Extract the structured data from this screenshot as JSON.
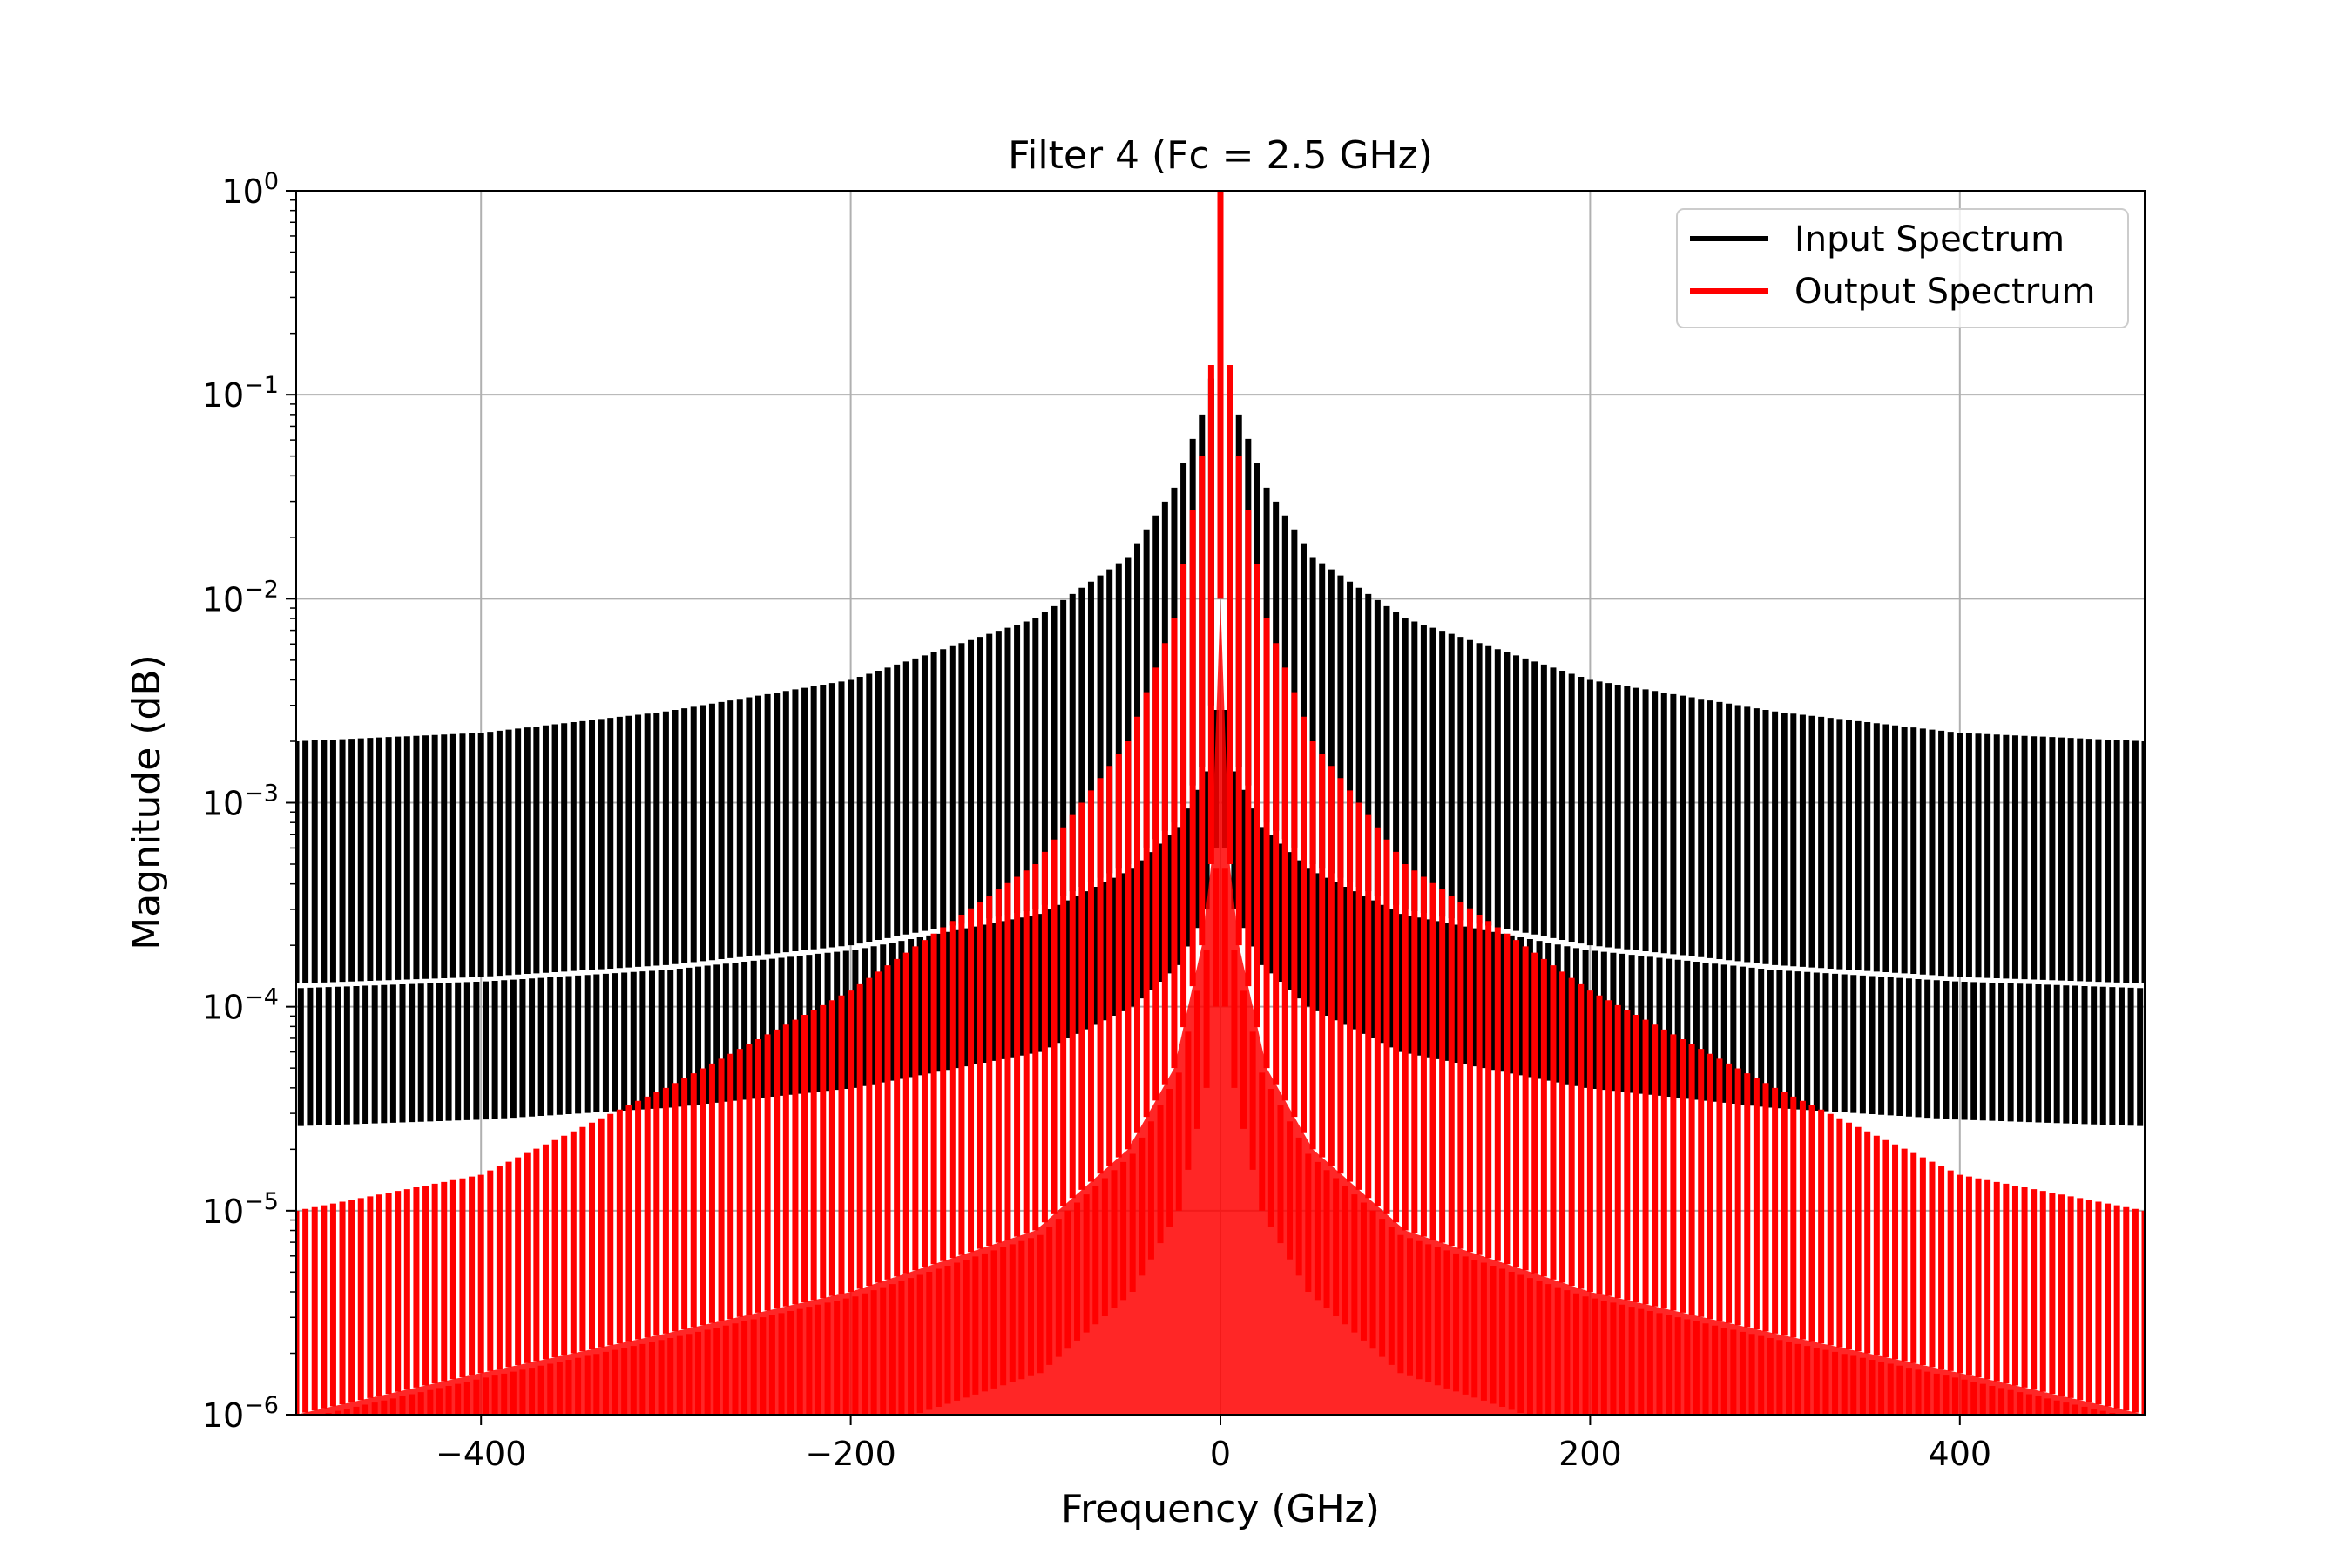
{
  "chart_data": {
    "type": "line",
    "title": "Filter 4 (Fc = 2.5 GHz)",
    "xlabel": "Frequency (GHz)",
    "ylabel": "Magnitude (dB)",
    "xlim": [
      -500,
      500
    ],
    "ylim": [
      1e-06,
      1
    ],
    "yscale": "log",
    "grid": true,
    "legend_position": "top-right",
    "x_ticks": [
      -400,
      -200,
      0,
      200,
      400
    ],
    "x_tick_labels": [
      "−400",
      "−200",
      "0",
      "200",
      "400"
    ],
    "y_ticks": [
      1e-06,
      1e-05,
      0.0001,
      0.001,
      0.01,
      0.1,
      1
    ],
    "y_tick_labels": [
      {
        "base": "10",
        "exp": "−6"
      },
      {
        "base": "10",
        "exp": "−5"
      },
      {
        "base": "10",
        "exp": "−4"
      },
      {
        "base": "10",
        "exp": "−3"
      },
      {
        "base": "10",
        "exp": "−2"
      },
      {
        "base": "10",
        "exp": "−1"
      },
      {
        "base": "10",
        "exp": "0"
      }
    ],
    "harmonic_spacing_ghz": 5,
    "series": [
      {
        "name": "Input Spectrum",
        "color": "#000000",
        "envelope": {
          "x": [
            0,
            5,
            10,
            25,
            50,
            100,
            200,
            300,
            400,
            500
          ],
          "upper": [
            0.22,
            0.12,
            0.08,
            0.035,
            0.016,
            0.008,
            0.004,
            0.0028,
            0.0022,
            0.002
          ],
          "lower": [
            0.01,
            0.003,
            0.0015,
            0.0008,
            0.0005,
            0.0003,
            0.0002,
            0.00016,
            0.00014,
            0.00013
          ]
        }
      },
      {
        "name": "Output Spectrum",
        "color": "#ff0000",
        "envelope": {
          "x": [
            0,
            5,
            10,
            25,
            50,
            100,
            200,
            300,
            400,
            500
          ],
          "upper": [
            1.0,
            0.14,
            0.05,
            0.008,
            0.002,
            0.0005,
            0.00012,
            4e-05,
            1.5e-05,
            1e-05
          ],
          "lower": [
            0.01,
            0.0005,
            0.0002,
            5e-05,
            2e-05,
            8e-06,
            4e-06,
            2.5e-06,
            1.6e-06,
            1e-06
          ]
        }
      }
    ]
  }
}
